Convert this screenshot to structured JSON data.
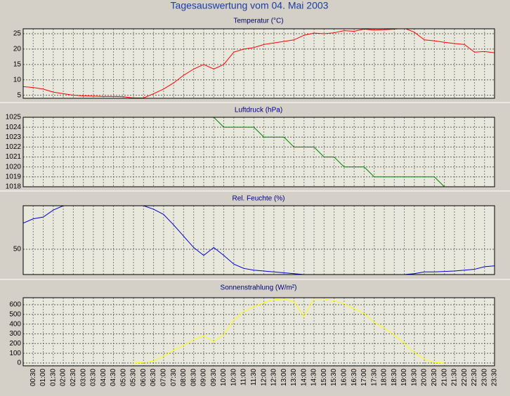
{
  "title": "Tagesauswertung vom 04. Mai 2003",
  "categories": [
    null,
    "00:30",
    "01:00",
    "01:30",
    "02:00",
    "02:30",
    "03:00",
    "03:30",
    "04:00",
    "04:30",
    "05:00",
    "05:30",
    "06:00",
    "06:30",
    "07:00",
    "07:30",
    "08:00",
    "08:30",
    "09:00",
    "09:30",
    "10:00",
    "10:30",
    "11:00",
    "11:30",
    "12:00",
    "12:30",
    "13:00",
    "13:30",
    "14:00",
    "14:30",
    "15:00",
    "15:30",
    "16:00",
    "16:30",
    "17:00",
    "17:30",
    "18:00",
    "18:30",
    "19:00",
    "19:30",
    "20:00",
    "20:30",
    "21:00",
    "21:30",
    "22:00",
    "22:30",
    "23:00",
    "23:30"
  ],
  "chart_data": [
    {
      "type": "line",
      "title": "Temperatur (°C)",
      "color": "#ff0000",
      "ylim": [
        4,
        26.6
      ],
      "yticks": [
        5,
        10,
        15,
        20,
        25
      ],
      "grid": true,
      "values": [
        7.8,
        7.5,
        7.0,
        6.0,
        5.5,
        5.0,
        4.8,
        4.7,
        4.6,
        4.6,
        4.5,
        4.1,
        4.1,
        5.5,
        7,
        9,
        11.5,
        13.5,
        15,
        13.5,
        15,
        19,
        20,
        20.5,
        21.5,
        22,
        22.5,
        23,
        24.5,
        25.2,
        25,
        25.3,
        26,
        25.8,
        26.5,
        26.2,
        26.3,
        26.5,
        26.8,
        25.5,
        23,
        22.7,
        22.2,
        21.8,
        21.5,
        19,
        19.2,
        18.8
      ]
    },
    {
      "type": "line",
      "title": "Luftdruck (hPa)",
      "color": "#008000",
      "ylim": [
        1018,
        1025
      ],
      "yticks": [
        1018,
        1019,
        1020,
        1021,
        1022,
        1023,
        1024,
        1025
      ],
      "grid": true,
      "values": [
        null,
        null,
        null,
        null,
        null,
        null,
        null,
        null,
        null,
        null,
        null,
        null,
        null,
        null,
        null,
        null,
        null,
        null,
        null,
        1025,
        1024,
        1024,
        1024,
        1024,
        1023,
        1023,
        1023,
        1022,
        1022,
        1022,
        1021,
        1021,
        1020,
        1020,
        1020,
        1019,
        1019,
        1019,
        1019,
        1019,
        1019,
        1019,
        1018,
        null,
        null,
        null,
        null,
        null
      ]
    },
    {
      "type": "line",
      "title": "Rel. Feuchte (%)",
      "color": "#0000cc",
      "ylim": [
        21,
        100
      ],
      "yticks": [
        50
      ],
      "grid": true,
      "values": [
        80,
        85,
        87,
        95,
        100,
        100,
        100,
        100,
        100,
        100,
        100,
        100,
        100,
        96,
        90,
        78,
        65,
        52,
        43,
        52,
        43,
        33,
        28,
        26,
        25,
        24,
        23,
        22,
        21,
        null,
        null,
        null,
        null,
        null,
        null,
        null,
        null,
        null,
        21,
        22,
        24,
        24,
        24.5,
        25,
        26,
        27,
        30,
        31
      ]
    },
    {
      "type": "line",
      "title": "Sonnenstrahlung (W/m²)",
      "color": "#ffff00",
      "ylim": [
        -29,
        672
      ],
      "yticks": [
        0,
        100,
        200,
        300,
        400,
        500,
        600
      ],
      "grid": true,
      "values": [
        null,
        null,
        null,
        null,
        null,
        null,
        null,
        null,
        null,
        null,
        null,
        0,
        5,
        20,
        70,
        130,
        180,
        240,
        280,
        220,
        290,
        440,
        530,
        580,
        620,
        650,
        660,
        630,
        480,
        660,
        660,
        640,
        610,
        560,
        510,
        420,
        360,
        290,
        200,
        110,
        40,
        5,
        0,
        null,
        null,
        null,
        null,
        null
      ]
    }
  ]
}
